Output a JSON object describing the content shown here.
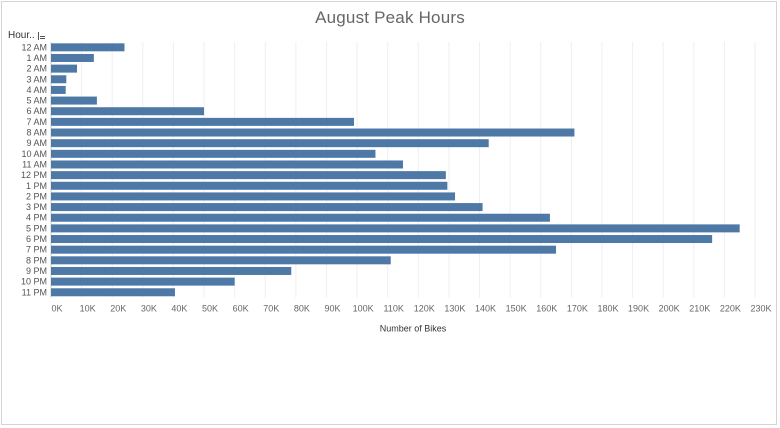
{
  "chart_data": {
    "type": "bar",
    "orientation": "horizontal",
    "title": "August Peak Hours",
    "ylabel": "Hour..",
    "xlabel": "Number of Bikes",
    "xlim": [
      0,
      230000
    ],
    "x_ticks": [
      "0K",
      "10K",
      "20K",
      "30K",
      "40K",
      "50K",
      "60K",
      "70K",
      "80K",
      "90K",
      "100K",
      "110K",
      "120K",
      "130K",
      "140K",
      "150K",
      "160K",
      "170K",
      "180K",
      "190K",
      "200K",
      "210K",
      "220K",
      "230K"
    ],
    "grid": "vertical",
    "bar_color": "#4e79a7",
    "categories": [
      "12 AM",
      "1 AM",
      "2 AM",
      "3 AM",
      "4 AM",
      "5 AM",
      "6 AM",
      "7 AM",
      "8 AM",
      "9 AM",
      "10 AM",
      "11 AM",
      "12 PM",
      "1 PM",
      "2 PM",
      "3 PM",
      "4 PM",
      "5 PM",
      "6 PM",
      "7 PM",
      "8 PM",
      "9 PM",
      "10 PM",
      "11 PM"
    ],
    "values": [
      24000,
      14000,
      8500,
      5000,
      4800,
      15000,
      50000,
      99000,
      171000,
      143000,
      106000,
      115000,
      129000,
      129500,
      132000,
      141000,
      163000,
      225000,
      216000,
      165000,
      111000,
      78500,
      60000,
      40500
    ]
  }
}
